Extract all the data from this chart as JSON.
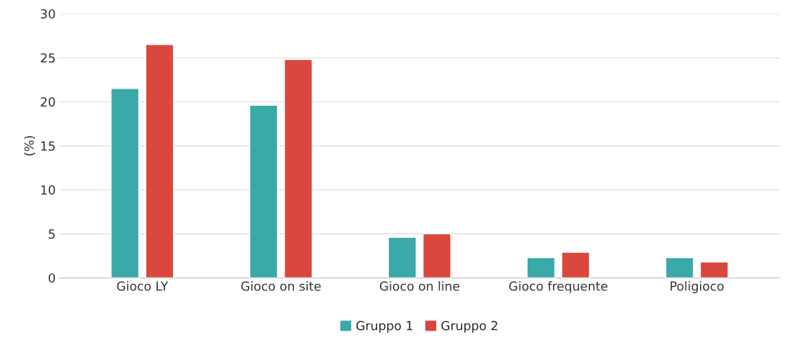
{
  "chart_data": {
    "type": "bar",
    "ylabel": "(%)",
    "categories": [
      "Gioco LY",
      "Gioco on site",
      "Gioco on line",
      "Gioco frequente",
      "Poligioco"
    ],
    "series": [
      {
        "name": "Gruppo 1",
        "color": "#3aa9a9",
        "values": [
          21.5,
          19.6,
          4.6,
          2.3,
          2.3
        ]
      },
      {
        "name": "Gruppo 2",
        "color": "#d9473f",
        "values": [
          26.5,
          24.8,
          5.0,
          2.9,
          1.8
        ]
      }
    ],
    "ylim": [
      0,
      30
    ],
    "yticks": [
      0,
      5,
      10,
      15,
      20,
      25,
      30
    ],
    "grid": "y",
    "legend": "bottom"
  }
}
